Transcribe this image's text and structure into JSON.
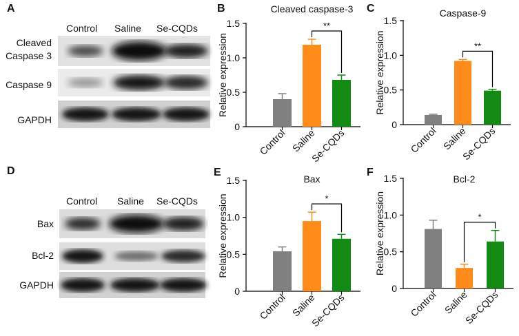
{
  "panel_letters": {
    "a": "A",
    "b": "B",
    "c": "C",
    "d": "D",
    "e": "E",
    "f": "F"
  },
  "blot_top": {
    "lanes": [
      "Control",
      "Saline",
      "Se-CQDs"
    ],
    "rows": [
      "Cleaved Caspase 3",
      "Caspase 9",
      "GAPDH"
    ],
    "row_line1": "Cleaved",
    "row_line2": "Caspase 3"
  },
  "blot_bottom": {
    "lanes": [
      "Control",
      "Saline",
      "Se-CQDs"
    ],
    "rows": [
      "Bax",
      "Bcl-2",
      "GAPDH"
    ]
  },
  "colors": {
    "Control": "#808080",
    "Saline": "#ff8c1a",
    "Se-CQDs": "#138a13"
  },
  "chart_data": [
    {
      "type": "bar",
      "title": "Cleaved caspase-3",
      "ylabel": "Relative expression",
      "categories": [
        "Control",
        "Saline",
        "Se-CQDs"
      ],
      "values": [
        0.4,
        1.19,
        0.68
      ],
      "errors": [
        0.08,
        0.08,
        0.07
      ],
      "ylim": [
        0,
        1.5
      ],
      "yticks": [
        "0",
        "0.5",
        "1.0",
        "1.5"
      ],
      "significance": {
        "from": "Saline",
        "to": "Se-CQDs",
        "label": "**"
      }
    },
    {
      "type": "bar",
      "title": "Caspase-9",
      "ylabel": "Relative expression",
      "categories": [
        "Control",
        "Saline",
        "Se-CQDs"
      ],
      "values": [
        0.14,
        0.92,
        0.49
      ],
      "errors": [
        0.01,
        0.02,
        0.02
      ],
      "ylim": [
        0,
        1.5
      ],
      "yticks": [
        "0",
        "0.5",
        "1.0",
        "1.5"
      ],
      "significance": {
        "from": "Saline",
        "to": "Se-CQDs",
        "label": "**"
      }
    },
    {
      "type": "bar",
      "title": "Bax",
      "ylabel": "Relative expression",
      "categories": [
        "Control",
        "Saline",
        "Se-CQDs"
      ],
      "values": [
        0.54,
        0.95,
        0.71
      ],
      "errors": [
        0.06,
        0.12,
        0.06
      ],
      "ylim": [
        0,
        1.5
      ],
      "yticks": [
        "0",
        "0.5",
        "1.0",
        "1.5"
      ],
      "significance": {
        "from": "Saline",
        "to": "Se-CQDs",
        "label": "*"
      }
    },
    {
      "type": "bar",
      "title": "Bcl-2",
      "ylabel": "Relative expression",
      "categories": [
        "Control",
        "Saline",
        "Se-CQDs"
      ],
      "values": [
        0.81,
        0.28,
        0.64
      ],
      "errors": [
        0.12,
        0.05,
        0.15
      ],
      "ylim": [
        0,
        1.5
      ],
      "yticks": [
        "0",
        "0.5",
        "1.0",
        "1.5"
      ],
      "significance": {
        "from": "Saline",
        "to": "Se-CQDs",
        "label": "*"
      }
    }
  ]
}
